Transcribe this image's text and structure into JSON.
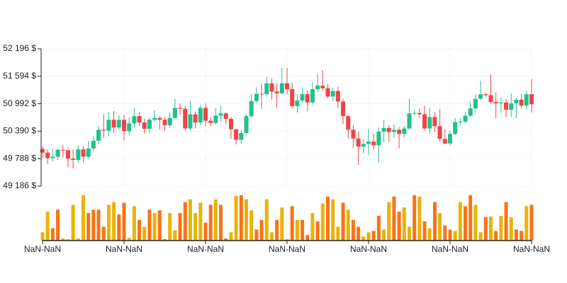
{
  "chart_data": {
    "type": "candlestick",
    "categories": [
      "NaN-NaN",
      null,
      null,
      null,
      null,
      null,
      null,
      null,
      null,
      null,
      null,
      null,
      null,
      null,
      null,
      null,
      "NaN-NaN",
      null,
      null,
      null,
      null,
      null,
      null,
      null,
      null,
      null,
      null,
      null,
      null,
      null,
      null,
      null,
      "NaN-NaN",
      null,
      null,
      null,
      null,
      null,
      null,
      null,
      null,
      null,
      null,
      null,
      null,
      null,
      null,
      null,
      "NaN-NaN",
      null,
      null,
      null,
      null,
      null,
      null,
      null,
      null,
      null,
      null,
      null,
      null,
      null,
      null,
      null,
      "NaN-NaN",
      null,
      null,
      null,
      null,
      null,
      null,
      null,
      null,
      null,
      null,
      null,
      null,
      null,
      null,
      null,
      "NaN-NaN",
      null,
      null,
      null,
      null,
      null,
      null,
      null,
      null,
      null,
      null,
      null,
      null,
      null,
      null,
      null,
      "NaN-NaN"
    ],
    "open": [
      50000,
      49920,
      49800,
      49830,
      49980,
      49970,
      49790,
      49760,
      49990,
      49830,
      50010,
      50180,
      50420,
      50400,
      50640,
      50470,
      50640,
      50390,
      50560,
      50720,
      50580,
      50440,
      50640,
      50680,
      50640,
      50520,
      50680,
      50900,
      50880,
      50450,
      50760,
      50580,
      50900,
      50620,
      50570,
      50730,
      50780,
      50660,
      50430,
      50200,
      50350,
      50720,
      51050,
      51210,
      51200,
      51440,
      51260,
      51220,
      51440,
      51310,
      50940,
      51060,
      51200,
      51020,
      51310,
      51390,
      51330,
      51150,
      51270,
      51040,
      50720,
      50420,
      50230,
      50050,
      50110,
      50160,
      50080,
      50380,
      50460,
      50370,
      50420,
      50330,
      50450,
      50780,
      50790,
      50760,
      50450,
      50700,
      50500,
      50220,
      50120,
      50330,
      50590,
      50600,
      50730,
      50890,
      51100,
      51200,
      51180,
      51030,
      51000,
      51020,
      50860,
      51000,
      51080,
      50950,
      51200
    ],
    "high": [
      50060,
      49990,
      50000,
      50010,
      50090,
      50010,
      49990,
      50080,
      50060,
      50180,
      50280,
      50500,
      50760,
      50810,
      50830,
      50740,
      50750,
      50690,
      50900,
      50800,
      50660,
      50690,
      50850,
      50720,
      50700,
      50800,
      51100,
      51000,
      50950,
      51050,
      50820,
      50960,
      51000,
      50700,
      50900,
      50940,
      50800,
      50700,
      50440,
      50420,
      50760,
      51200,
      51350,
      51420,
      51580,
      51540,
      51440,
      51780,
      51780,
      51450,
      51200,
      51340,
      51280,
      51460,
      51640,
      51730,
      51420,
      51350,
      51360,
      51100,
      50760,
      50520,
      50380,
      50220,
      50450,
      50330,
      50470,
      50640,
      50520,
      50530,
      50480,
      50500,
      51100,
      50870,
      50880,
      50950,
      50890,
      50810,
      50880,
      50430,
      50400,
      50680,
      50680,
      50810,
      51040,
      51200,
      51500,
      51230,
      51640,
      51250,
      51130,
      51090,
      51220,
      51120,
      51200,
      51270,
      51530
    ],
    "low": [
      49800,
      49670,
      49730,
      49760,
      49810,
      49600,
      49570,
      49700,
      49710,
      49780,
      49950,
      50100,
      50250,
      50280,
      50350,
      50420,
      50180,
      50300,
      50470,
      50500,
      50350,
      50360,
      50600,
      50430,
      50400,
      50460,
      50650,
      50750,
      50400,
      50420,
      50450,
      50520,
      50500,
      50500,
      50540,
      50600,
      50540,
      50220,
      50100,
      50120,
      50300,
      50690,
      51000,
      50880,
      51150,
      51080,
      50900,
      51200,
      51200,
      50880,
      50800,
      51010,
      50830,
      50970,
      51240,
      51280,
      51120,
      51050,
      50900,
      50550,
      50230,
      50020,
      49650,
      49900,
      49860,
      49990,
      49700,
      50140,
      50150,
      50250,
      50010,
      50250,
      50420,
      50740,
      50680,
      50400,
      50340,
      50370,
      50170,
      50100,
      50080,
      50300,
      50520,
      50560,
      50690,
      50780,
      51080,
      51150,
      50980,
      50680,
      50780,
      50700,
      50700,
      50680,
      50900,
      50870,
      50800
    ],
    "close": [
      49920,
      49800,
      49830,
      49980,
      49970,
      49790,
      49760,
      49990,
      49830,
      50010,
      50180,
      50420,
      50400,
      50640,
      50470,
      50640,
      50390,
      50560,
      50720,
      50580,
      50440,
      50640,
      50680,
      50640,
      50520,
      50680,
      50900,
      50880,
      50450,
      50760,
      50580,
      50900,
      50620,
      50570,
      50730,
      50780,
      50660,
      50430,
      50200,
      50350,
      50720,
      51050,
      51210,
      51200,
      51440,
      51260,
      51220,
      51440,
      51310,
      50940,
      51060,
      51200,
      51020,
      51310,
      51390,
      51330,
      51150,
      51270,
      51040,
      50720,
      50420,
      50230,
      50050,
      50110,
      50160,
      50080,
      50380,
      50460,
      50370,
      50420,
      50330,
      50450,
      50780,
      50790,
      50760,
      50450,
      50700,
      50500,
      50220,
      50120,
      50330,
      50590,
      50600,
      50730,
      50890,
      51100,
      51200,
      51180,
      51030,
      51000,
      51020,
      50860,
      51000,
      51080,
      50950,
      51200,
      50980
    ],
    "up_color": "#22c08c",
    "down_color": "#ef4444",
    "ylim": [
      49186,
      52196
    ],
    "yticks": [
      {
        "value": 49186,
        "label": "49 186 $"
      },
      {
        "value": 49788,
        "label": "49 788 $"
      },
      {
        "value": 50390,
        "label": "50 390 $"
      },
      {
        "value": 50992,
        "label": "50 992 $"
      },
      {
        "value": 51594,
        "label": "51 594 $"
      },
      {
        "value": 52196,
        "label": "52 196 $"
      }
    ],
    "grid": true,
    "volume": {
      "values": [
        12,
        42,
        18,
        45,
        3,
        2,
        52,
        3,
        66,
        40,
        45,
        45,
        20,
        52,
        56,
        38,
        55,
        4,
        50,
        30,
        20,
        45,
        40,
        44,
        2,
        40,
        15,
        40,
        56,
        60,
        40,
        55,
        26,
        52,
        60,
        52,
        3,
        12,
        65,
        66,
        60,
        44,
        16,
        30,
        60,
        12,
        30,
        48,
        2,
        50,
        30,
        30,
        8,
        40,
        28,
        54,
        64,
        60,
        20,
        55,
        45,
        30,
        20,
        6,
        12,
        14,
        36,
        16,
        56,
        64,
        42,
        48,
        20,
        66,
        64,
        28,
        18,
        56,
        40,
        22,
        16,
        14,
        56,
        50,
        66,
        52,
        12,
        34,
        35,
        14,
        36,
        56,
        34,
        16,
        14,
        50,
        52
      ],
      "palette": [
        "#eab308",
        "#f97316"
      ],
      "color_index": [
        0,
        0,
        1,
        1,
        0,
        0,
        0,
        0,
        0,
        1,
        1,
        1,
        1,
        0,
        0,
        1,
        1,
        0,
        0,
        1,
        0,
        1,
        0,
        1,
        1,
        0,
        0,
        1,
        1,
        0,
        0,
        0,
        1,
        1,
        0,
        1,
        1,
        0,
        0,
        1,
        0,
        0,
        1,
        1,
        0,
        0,
        1,
        0,
        0,
        1,
        0,
        1,
        1,
        0,
        1,
        0,
        1,
        0,
        0,
        1,
        0,
        1,
        1,
        0,
        0,
        1,
        1,
        0,
        0,
        1,
        1,
        0,
        0,
        1,
        0,
        1,
        0,
        1,
        0,
        1,
        1,
        0,
        0,
        1,
        1,
        0,
        0,
        1,
        0,
        1,
        0,
        1,
        0,
        1,
        1,
        0,
        1
      ],
      "vlim": [
        0,
        70
      ]
    }
  }
}
